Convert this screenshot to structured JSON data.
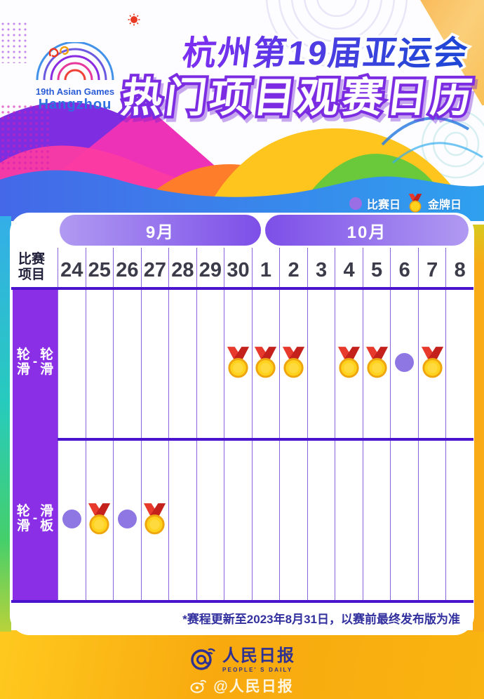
{
  "header": {
    "emblem": {
      "wordmark_line1": "19th Asian Games",
      "wordmark_line2": "Hangzhou"
    },
    "title_line1": "杭州第19届亚运会",
    "title_line2": "热门项目观赛日历"
  },
  "legend": {
    "competition_label": "比赛日",
    "gold_label": "金牌日",
    "competition_color": "#9a6fe6",
    "gold_color": "#ffd21e"
  },
  "calendar": {
    "corner_label_line1": "比赛",
    "corner_label_line2": "项目",
    "months": [
      {
        "label": "9月",
        "days": 7
      },
      {
        "label": "10月",
        "days": 8
      }
    ],
    "dates": [
      "24",
      "25",
      "26",
      "27",
      "28",
      "29",
      "30",
      "1",
      "2",
      "3",
      "4",
      "5",
      "6",
      "7",
      "8"
    ],
    "rows": [
      {
        "label_pair": [
          "轮滑",
          "轮滑"
        ],
        "dash": "-",
        "name": "轮滑-轮滑",
        "cells": [
          "",
          "",
          "",
          "",
          "",
          "",
          "gold",
          "gold",
          "gold",
          "",
          "gold",
          "gold",
          "comp",
          "gold",
          ""
        ]
      },
      {
        "label_pair": [
          "轮滑",
          "滑板"
        ],
        "dash": "-",
        "name": "轮滑-滑板",
        "cells": [
          "comp",
          "gold",
          "comp",
          "gold",
          "",
          "",
          "",
          "",
          "",
          "",
          "",
          "",
          "",
          "",
          ""
        ]
      }
    ],
    "footnote": "*赛程更新至2023年8月31日，以赛前最终发布版为准"
  },
  "footer": {
    "brand": "人民日报",
    "brand_sub": "PEOPLE' S DAILY",
    "weibo_handle": "@人民日报"
  },
  "colors": {
    "label_column": "#8b2fe6",
    "grid_line": "#8a63dd",
    "thick_line": "#4a14cf",
    "medal_gold": "#ffd21e",
    "medal_ribbon": "#e73a2c",
    "footnote_text": "#32309f",
    "bottom_band": "#f9b411"
  },
  "chart_data": {
    "type": "table",
    "title": "杭州第19届亚运会 热门项目观赛日历",
    "legend": [
      "比赛日",
      "金牌日"
    ],
    "legend_position": "top-right",
    "columns": [
      "9/24",
      "9/25",
      "9/26",
      "9/27",
      "9/28",
      "9/29",
      "9/30",
      "10/1",
      "10/2",
      "10/3",
      "10/4",
      "10/5",
      "10/6",
      "10/7",
      "10/8"
    ],
    "rows": [
      {
        "event": "轮滑-轮滑",
        "values": [
          null,
          null,
          null,
          null,
          null,
          null,
          "金牌日",
          "金牌日",
          "金牌日",
          null,
          "金牌日",
          "金牌日",
          "比赛日",
          "金牌日",
          null
        ]
      },
      {
        "event": "轮滑-滑板",
        "values": [
          "比赛日",
          "金牌日",
          "比赛日",
          "金牌日",
          null,
          null,
          null,
          null,
          null,
          null,
          null,
          null,
          null,
          null,
          null
        ]
      }
    ],
    "footnote": "*赛程更新至2023年8月31日，以赛前最终发布版为准"
  }
}
